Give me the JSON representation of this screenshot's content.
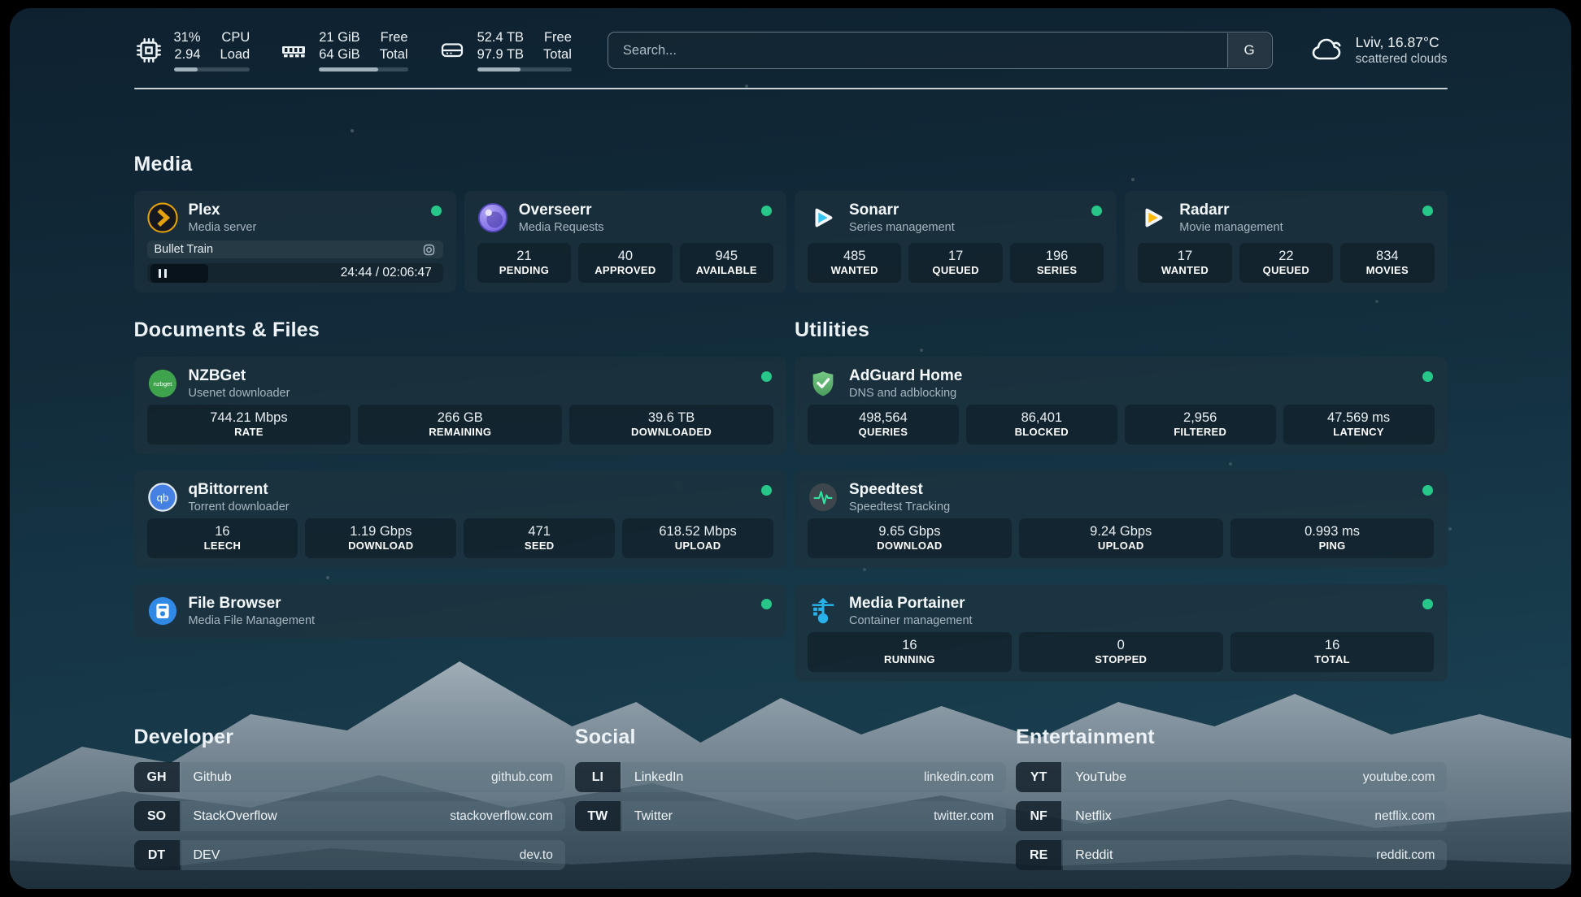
{
  "colors": {
    "status_online": "#27c789",
    "progress_fill": "#a2b2bd",
    "plex_gold": "#e5a00d",
    "sonarr_cyan": "#35c5f4",
    "radarr_amber": "#ffb90f",
    "nzbget_green": "#3fa34d",
    "qbittorrent_blue": "#4581e3",
    "adguard_green": "#68bc71",
    "speedtest_pulse": "#2fe3a0",
    "portainer_blue": "#29b2ea"
  },
  "header": {
    "widgets": [
      {
        "name": "cpu",
        "icon": "cpu-icon",
        "values": [
          "31%",
          "2.94"
        ],
        "labels": [
          "CPU",
          "Load"
        ],
        "progress": 31
      },
      {
        "name": "memory",
        "icon": "memory-icon",
        "values": [
          "21 GiB",
          "64 GiB"
        ],
        "labels": [
          "Free",
          "Total"
        ],
        "progress": 67
      },
      {
        "name": "disk",
        "icon": "disk-icon",
        "values": [
          "52.4 TB",
          "97.9 TB"
        ],
        "labels": [
          "Free",
          "Total"
        ],
        "progress": 46
      }
    ],
    "search": {
      "placeholder": "Search...",
      "button_label": "G"
    },
    "weather": {
      "icon": "cloud-icon",
      "summary": "Lviv, 16.87°C",
      "condition": "scattered clouds"
    }
  },
  "sections": {
    "media": {
      "title": "Media",
      "cards": [
        {
          "title": "Plex",
          "subtitle": "Media server",
          "status": "online",
          "player": {
            "now_playing": "Bullet Train",
            "time": "24:44 / 02:06:47",
            "progress_pct": 20
          }
        },
        {
          "title": "Overseerr",
          "subtitle": "Media Requests",
          "status": "online",
          "stats": [
            {
              "value": "21",
              "label": "PENDING"
            },
            {
              "value": "40",
              "label": "APPROVED"
            },
            {
              "value": "945",
              "label": "AVAILABLE"
            }
          ]
        },
        {
          "title": "Sonarr",
          "subtitle": "Series management",
          "status": "online",
          "stats": [
            {
              "value": "485",
              "label": "WANTED"
            },
            {
              "value": "17",
              "label": "QUEUED"
            },
            {
              "value": "196",
              "label": "SERIES"
            }
          ]
        },
        {
          "title": "Radarr",
          "subtitle": "Movie management",
          "status": "online",
          "stats": [
            {
              "value": "17",
              "label": "WANTED"
            },
            {
              "value": "22",
              "label": "QUEUED"
            },
            {
              "value": "834",
              "label": "MOVIES"
            }
          ]
        }
      ]
    },
    "documents": {
      "title": "Documents & Files",
      "cards": [
        {
          "title": "NZBGet",
          "subtitle": "Usenet downloader",
          "status": "online",
          "stats": [
            {
              "value": "744.21 Mbps",
              "label": "RATE"
            },
            {
              "value": "266 GB",
              "label": "REMAINING"
            },
            {
              "value": "39.6 TB",
              "label": "DOWNLOADED"
            }
          ]
        },
        {
          "title": "qBittorrent",
          "subtitle": "Torrent downloader",
          "status": "online",
          "stats": [
            {
              "value": "16",
              "label": "LEECH"
            },
            {
              "value": "1.19 Gbps",
              "label": "DOWNLOAD"
            },
            {
              "value": "471",
              "label": "SEED"
            },
            {
              "value": "618.52 Mbps",
              "label": "UPLOAD"
            }
          ]
        },
        {
          "title": "File Browser",
          "subtitle": "Media File Management",
          "status": "online"
        }
      ]
    },
    "utilities": {
      "title": "Utilities",
      "cards": [
        {
          "title": "AdGuard Home",
          "subtitle": "DNS and adblocking",
          "status": "online",
          "stats": [
            {
              "value": "498,564",
              "label": "QUERIES"
            },
            {
              "value": "86,401",
              "label": "BLOCKED"
            },
            {
              "value": "2,956",
              "label": "FILTERED"
            },
            {
              "value": "47.569 ms",
              "label": "LATENCY"
            }
          ]
        },
        {
          "title": "Speedtest",
          "subtitle": "Speedtest Tracking",
          "status": "online",
          "stats": [
            {
              "value": "9.65 Gbps",
              "label": "DOWNLOAD"
            },
            {
              "value": "9.24 Gbps",
              "label": "UPLOAD"
            },
            {
              "value": "0.993 ms",
              "label": "PING"
            }
          ]
        },
        {
          "title": "Media Portainer",
          "subtitle": "Container management",
          "status": "online",
          "stats": [
            {
              "value": "16",
              "label": "RUNNING"
            },
            {
              "value": "0",
              "label": "STOPPED"
            },
            {
              "value": "16",
              "label": "TOTAL"
            }
          ]
        }
      ]
    },
    "bookmarks": [
      {
        "title": "Developer",
        "links": [
          {
            "abbr": "GH",
            "name": "Github",
            "url": "github.com"
          },
          {
            "abbr": "SO",
            "name": "StackOverflow",
            "url": "stackoverflow.com"
          },
          {
            "abbr": "DT",
            "name": "DEV",
            "url": "dev.to"
          }
        ]
      },
      {
        "title": "Social",
        "links": [
          {
            "abbr": "LI",
            "name": "LinkedIn",
            "url": "linkedin.com"
          },
          {
            "abbr": "TW",
            "name": "Twitter",
            "url": "twitter.com"
          }
        ]
      },
      {
        "title": "Entertainment",
        "links": [
          {
            "abbr": "YT",
            "name": "YouTube",
            "url": "youtube.com"
          },
          {
            "abbr": "NF",
            "name": "Netflix",
            "url": "netflix.com"
          },
          {
            "abbr": "RE",
            "name": "Reddit",
            "url": "reddit.com"
          }
        ]
      }
    ]
  }
}
